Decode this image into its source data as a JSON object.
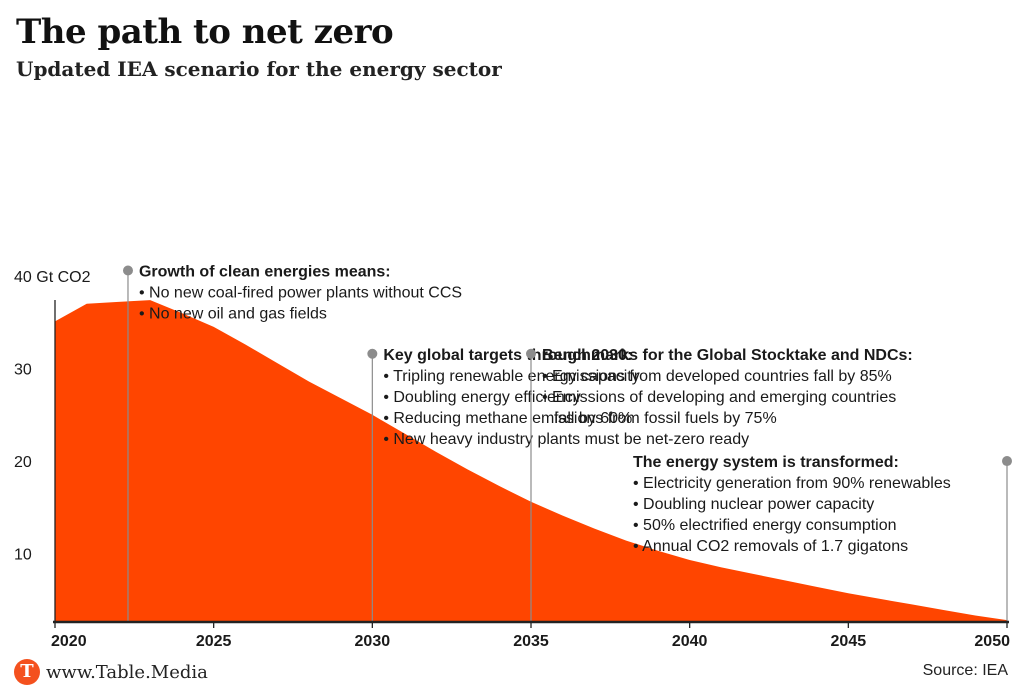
{
  "header": {
    "title": "The path to net zero",
    "subtitle": "Updated IEA scenario for the energy sector"
  },
  "footer": {
    "brand": "www.Table.Media",
    "brand_logo_letter": "T",
    "source": "Source: IEA"
  },
  "colors": {
    "area": "#ff4500",
    "axis": "#222222",
    "marker_line": "#8c8c8c"
  },
  "chart_data": {
    "type": "area",
    "title": "The path to net zero",
    "subtitle": "Updated IEA scenario for the energy sector",
    "xlabel": "",
    "ylabel": "",
    "unit_label": "40 Gt CO2",
    "xlim": [
      2020,
      2050
    ],
    "ylim": [
      3,
      43
    ],
    "x_ticks": [
      "2020",
      "2025",
      "2030",
      "2035",
      "2040",
      "2045",
      "2050"
    ],
    "y_ticks": [
      {
        "value": 10,
        "label": "10"
      },
      {
        "value": 20,
        "label": "20"
      },
      {
        "value": 30,
        "label": "30"
      },
      {
        "value": 40,
        "label": "40 Gt CO2"
      }
    ],
    "grid": false,
    "series": [
      {
        "x": [
          2020,
          2021,
          2022,
          2023,
          2024,
          2025,
          2026,
          2027,
          2028,
          2029,
          2030,
          2031,
          2032,
          2033,
          2034,
          2035,
          2036,
          2037,
          2038,
          2039,
          2040,
          2041,
          2042,
          2043,
          2044,
          2045,
          2046,
          2047,
          2048,
          2049,
          2050
        ],
        "values": [
          35.5,
          37.4,
          37.6,
          37.8,
          36.4,
          34.9,
          33.0,
          31.0,
          29.0,
          27.2,
          25.4,
          23.4,
          21.4,
          19.5,
          17.7,
          16.0,
          14.5,
          13.1,
          11.8,
          10.7,
          9.7,
          8.9,
          8.2,
          7.5,
          6.8,
          6.1,
          5.5,
          4.9,
          4.3,
          3.7,
          3.2
        ]
      }
    ],
    "annotations": [
      {
        "year": 2022.3,
        "level": 41,
        "heading": "Growth of clean energies means:",
        "bullets": [
          "• No new coal-fired power plants without CCS",
          "• No new oil and gas fields"
        ]
      },
      {
        "year": 2030,
        "level": 32.0,
        "heading": "Key global targets through 2030:",
        "bullets": [
          "• Tripling renewable energy capacity",
          "• Doubling energy efficiency",
          "• Reducing methane emissions from fossil fuels by 75%",
          "• New heavy industry plants must be net-zero ready"
        ]
      },
      {
        "year": 2035,
        "level": 32.0,
        "heading": "Benchmarks for the Global Stocktake and NDCs:",
        "bullets": [
          "• Emissions from developed countries fall by 85%",
          "• Emissions of developing and emerging countries",
          "fall by 60%"
        ]
      },
      {
        "year": 2050,
        "level": 20.4,
        "heading": "The energy system is transformed:",
        "bullets": [
          "• Electricity generation from 90% renewables",
          "• Doubling nuclear power capacity",
          "• 50% electrified energy consumption",
          "• Annual CO2 removals of 1.7 gigatons"
        ],
        "text_anchor": "left-of-line"
      }
    ]
  }
}
